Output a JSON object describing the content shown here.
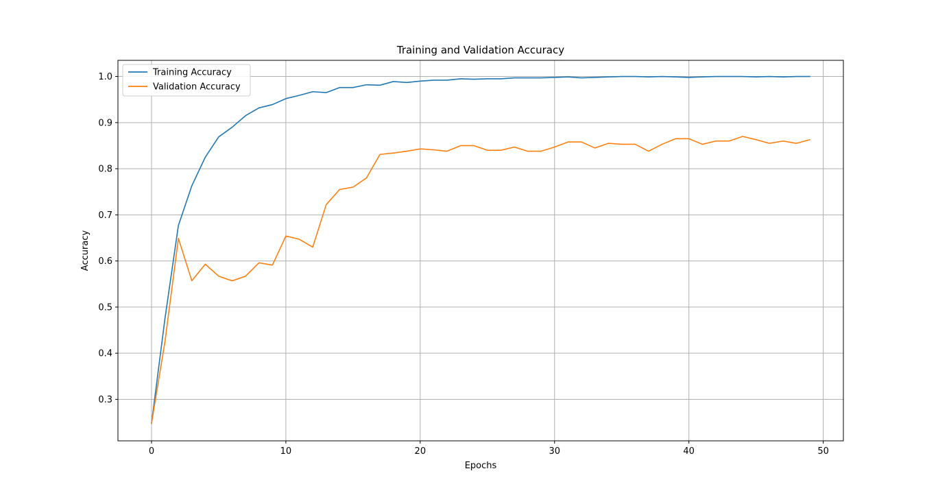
{
  "chart_data": {
    "type": "line",
    "title": "Training and Validation Accuracy",
    "xlabel": "Epochs",
    "ylabel": "Accuracy",
    "xlim": [
      -2.5,
      51.5
    ],
    "ylim": [
      0.21,
      1.035
    ],
    "xticks": [
      0,
      10,
      20,
      30,
      40,
      50
    ],
    "yticks": [
      0.3,
      0.4,
      0.5,
      0.6,
      0.7,
      0.8,
      0.9,
      1.0
    ],
    "ytick_labels": [
      "0.3",
      "0.4",
      "0.5",
      "0.6",
      "0.7",
      "0.8",
      "0.9",
      "1.0"
    ],
    "grid": true,
    "legend_position": "top-left",
    "x": [
      0,
      1,
      2,
      3,
      4,
      5,
      6,
      7,
      8,
      9,
      10,
      11,
      12,
      13,
      14,
      15,
      16,
      17,
      18,
      19,
      20,
      21,
      22,
      23,
      24,
      25,
      26,
      27,
      28,
      29,
      30,
      31,
      32,
      33,
      34,
      35,
      36,
      37,
      38,
      39,
      40,
      41,
      42,
      43,
      44,
      45,
      46,
      47,
      48,
      49
    ],
    "series": [
      {
        "name": "Training Accuracy",
        "color": "#1f77b4",
        "values": [
          0.248,
          0.475,
          0.677,
          0.763,
          0.825,
          0.869,
          0.89,
          0.915,
          0.932,
          0.939,
          0.952,
          0.959,
          0.967,
          0.965,
          0.976,
          0.976,
          0.982,
          0.981,
          0.989,
          0.987,
          0.99,
          0.992,
          0.992,
          0.995,
          0.994,
          0.995,
          0.995,
          0.997,
          0.997,
          0.997,
          0.998,
          0.999,
          0.997,
          0.998,
          0.999,
          1.0,
          1.0,
          0.999,
          1.0,
          0.999,
          0.998,
          0.999,
          1.0,
          1.0,
          1.0,
          0.999,
          1.0,
          0.999,
          1.0,
          1.0
        ]
      },
      {
        "name": "Validation Accuracy",
        "color": "#ff7f0e",
        "values": [
          0.248,
          0.425,
          0.649,
          0.557,
          0.593,
          0.567,
          0.557,
          0.567,
          0.596,
          0.591,
          0.654,
          0.647,
          0.63,
          0.722,
          0.755,
          0.76,
          0.78,
          0.831,
          0.834,
          0.838,
          0.843,
          0.841,
          0.838,
          0.85,
          0.85,
          0.84,
          0.84,
          0.847,
          0.838,
          0.838,
          0.847,
          0.858,
          0.858,
          0.845,
          0.855,
          0.853,
          0.853,
          0.838,
          0.853,
          0.865,
          0.865,
          0.853,
          0.86,
          0.86,
          0.87,
          0.863,
          0.855,
          0.86,
          0.855,
          0.863
        ]
      }
    ]
  }
}
